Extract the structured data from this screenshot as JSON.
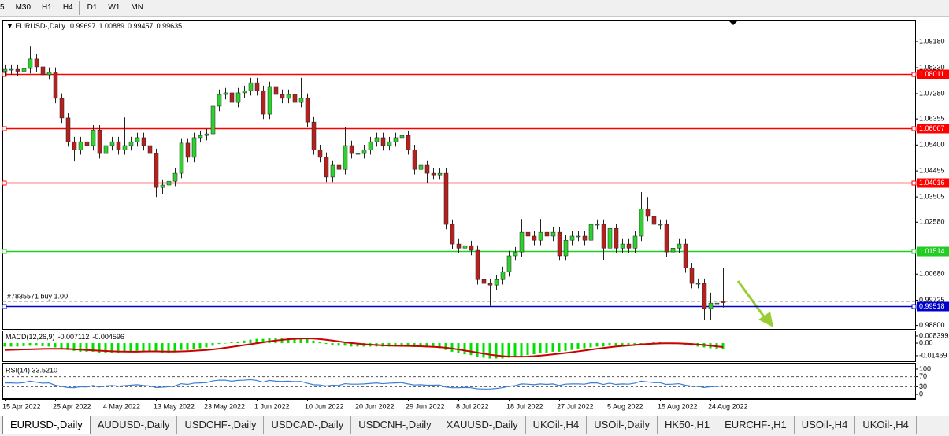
{
  "toolbar": {
    "timeframes": [
      "5",
      "M30",
      "H1",
      "H4",
      "D1",
      "W1",
      "MN"
    ]
  },
  "chart_data": {
    "type": "candlestick",
    "symbol": "EURUSD-,Daily",
    "bull_color": "#2ed12e",
    "bear_color": "#b3221e",
    "wick_color": "#222222",
    "ylim": [
      0.98673,
      1.09928
    ],
    "yticks": [
      {
        "value": 1.0918,
        "label": "1.09180"
      },
      {
        "value": 1.0823,
        "label": "1.08230"
      },
      {
        "value": 1.0728,
        "label": "1.07280"
      },
      1.06355,
      {
        "value": 1.054,
        "label": "1.05400"
      },
      1.04455,
      1.03505,
      {
        "value": 1.0258,
        "label": "1.02580"
      },
      {
        "value": 1.0068,
        "label": "1.00680"
      },
      0.99725,
      {
        "value": 0.988,
        "label": "0.98800"
      }
    ],
    "levels": [
      {
        "value": 1.08011,
        "color": "#ff0000"
      },
      {
        "value": 1.06007,
        "color": "#ff0000"
      },
      {
        "value": 1.04016,
        "color": "#ff0000"
      },
      {
        "value": 1.01514,
        "color": "#22cc22"
      },
      {
        "value": 0.99518,
        "color": "#0000cc"
      }
    ],
    "trade": {
      "label": "#7835571 buy 1.00",
      "price": 0.9968
    },
    "dates": [
      "15 Apr 2022",
      "25 Apr 2022",
      "4 May 2022",
      "13 May 2022",
      "23 May 2022",
      "1 Jun 2022",
      "10 Jun 2022",
      "20 Jun 2022",
      "29 Jun 2022",
      "8 Jul 2022",
      "18 Jul 2022",
      "27 Jul 2022",
      "5 Aug 2022",
      "15 Aug 2022",
      "24 Aug 2022"
    ],
    "candles": [
      [
        1.081,
        1.0835,
        1.0792,
        1.0817
      ],
      [
        1.0817,
        1.0835,
        1.0799,
        1.0817
      ],
      [
        1.0817,
        1.0835,
        1.0792,
        1.081
      ],
      [
        1.081,
        1.0838,
        1.0792,
        1.082
      ],
      [
        1.082,
        1.09,
        1.0802,
        1.0855
      ],
      [
        1.0855,
        1.0873,
        1.0808,
        1.0826
      ],
      [
        1.0826,
        1.0844,
        1.0779,
        1.0797
      ],
      [
        1.0797,
        1.0824,
        1.0779,
        1.0806
      ],
      [
        1.0806,
        1.0824,
        1.0693,
        1.0711
      ],
      [
        1.0711,
        1.0729,
        1.0621,
        1.0639
      ],
      [
        1.0639,
        1.0657,
        1.0534,
        1.0552
      ],
      [
        1.0552,
        1.057,
        1.048,
        1.0523
      ],
      [
        1.0523,
        1.057,
        1.0505,
        1.0552
      ],
      [
        1.0552,
        1.057,
        1.052,
        1.0538
      ],
      [
        1.0538,
        1.0613,
        1.052,
        1.0595
      ],
      [
        1.0595,
        1.0613,
        1.0491,
        1.0509
      ],
      [
        1.0509,
        1.0556,
        1.0491,
        1.0538
      ],
      [
        1.0538,
        1.057,
        1.052,
        1.0552
      ],
      [
        1.0552,
        1.057,
        1.0505,
        1.0523
      ],
      [
        1.0523,
        1.0641,
        1.0505,
        1.0538
      ],
      [
        1.0538,
        1.057,
        1.052,
        1.0552
      ],
      [
        1.0552,
        1.0585,
        1.0534,
        1.0567
      ],
      [
        1.0567,
        1.0585,
        1.052,
        1.0538
      ],
      [
        1.0538,
        1.0556,
        1.0491,
        1.0509
      ],
      [
        1.0509,
        1.0527,
        1.035,
        1.0385
      ],
      [
        1.0385,
        1.0412,
        1.036,
        1.0394
      ],
      [
        1.0394,
        1.0426,
        1.0376,
        1.0408
      ],
      [
        1.0408,
        1.0455,
        1.039,
        1.0437
      ],
      [
        1.0437,
        1.0565,
        1.0419,
        1.0547
      ],
      [
        1.0547,
        1.0565,
        1.0477,
        1.0495
      ],
      [
        1.0495,
        1.0585,
        1.0477,
        1.0567
      ],
      [
        1.0567,
        1.0593,
        1.0549,
        1.0575
      ],
      [
        1.0575,
        1.0599,
        1.0557,
        1.0581
      ],
      [
        1.0581,
        1.07,
        1.0563,
        1.0682
      ],
      [
        1.0682,
        1.0743,
        1.0664,
        1.0725
      ],
      [
        1.0725,
        1.0749,
        1.0707,
        1.0731
      ],
      [
        1.0731,
        1.0749,
        1.0678,
        1.0696
      ],
      [
        1.0696,
        1.0749,
        1.0678,
        1.0731
      ],
      [
        1.0731,
        1.0757,
        1.0713,
        1.0739
      ],
      [
        1.0739,
        1.0786,
        1.0721,
        1.0768
      ],
      [
        1.0768,
        1.0786,
        1.0721,
        1.0739
      ],
      [
        1.0739,
        1.0757,
        1.0635,
        1.0653
      ],
      [
        1.0653,
        1.0772,
        1.0635,
        1.0754
      ],
      [
        1.0754,
        1.0772,
        1.0707,
        1.0725
      ],
      [
        1.0725,
        1.0743,
        1.0693,
        1.0711
      ],
      [
        1.0711,
        1.0743,
        1.0693,
        1.0725
      ],
      [
        1.0725,
        1.0743,
        1.0678,
        1.0696
      ],
      [
        1.0696,
        1.0786,
        1.0678,
        1.0711
      ],
      [
        1.0711,
        1.0729,
        1.0606,
        1.0624
      ],
      [
        1.0624,
        1.0642,
        1.0505,
        1.0523
      ],
      [
        1.0523,
        1.0541,
        1.0477,
        1.0495
      ],
      [
        1.0495,
        1.0513,
        1.0405,
        1.0423
      ],
      [
        1.0423,
        1.0484,
        1.0405,
        1.0466
      ],
      [
        1.0466,
        1.0484,
        1.0359,
        1.0451
      ],
      [
        1.0451,
        1.0605,
        1.0433,
        1.0538
      ],
      [
        1.0538,
        1.0556,
        1.0491,
        1.0509
      ],
      [
        1.0509,
        1.0527,
        1.0491,
        1.0509
      ],
      [
        1.0509,
        1.0541,
        1.0491,
        1.0523
      ],
      [
        1.0523,
        1.057,
        1.0505,
        1.0552
      ],
      [
        1.0552,
        1.0585,
        1.0534,
        1.0567
      ],
      [
        1.0567,
        1.0585,
        1.052,
        1.0538
      ],
      [
        1.0538,
        1.057,
        1.052,
        1.0552
      ],
      [
        1.0552,
        1.0585,
        1.0534,
        1.0567
      ],
      [
        1.0567,
        1.0614,
        1.0549,
        1.0575
      ],
      [
        1.0575,
        1.0593,
        1.0505,
        1.0523
      ],
      [
        1.0523,
        1.0541,
        1.0433,
        1.0451
      ],
      [
        1.0451,
        1.0484,
        1.0433,
        1.0466
      ],
      [
        1.0466,
        1.0484,
        1.04,
        1.0437
      ],
      [
        1.0437,
        1.0455,
        1.0413,
        1.0431
      ],
      [
        1.0431,
        1.0455,
        1.0413,
        1.0437
      ],
      [
        1.0437,
        1.0455,
        1.0232,
        1.025
      ],
      [
        1.025,
        1.0268,
        1.016,
        1.0178
      ],
      [
        1.0178,
        1.0196,
        1.0145,
        1.0163
      ],
      [
        1.0163,
        1.019,
        1.0145,
        1.0172
      ],
      [
        1.0172,
        1.019,
        1.0137,
        1.0155
      ],
      [
        1.0155,
        1.0173,
        1.003,
        1.0048
      ],
      [
        1.0048,
        1.0066,
        1.0016,
        1.0034
      ],
      [
        1.0034,
        1.0052,
        0.9952,
        1.0028
      ],
      [
        1.0028,
        1.0066,
        1.001,
        1.0048
      ],
      [
        1.0048,
        1.0095,
        1.003,
        1.0077
      ],
      [
        1.0077,
        1.0153,
        1.0059,
        1.0135
      ],
      [
        1.0135,
        1.0167,
        1.0117,
        1.0149
      ],
      [
        1.0149,
        1.027,
        1.0131,
        1.0221
      ],
      [
        1.0221,
        1.027,
        1.0189,
        1.0207
      ],
      [
        1.0207,
        1.0225,
        1.0174,
        1.0192
      ],
      [
        1.0192,
        1.027,
        1.0174,
        1.0221
      ],
      [
        1.0221,
        1.0239,
        1.0189,
        1.0207
      ],
      [
        1.0207,
        1.0239,
        1.0189,
        1.0221
      ],
      [
        1.0221,
        1.0239,
        1.0117,
        1.0135
      ],
      [
        1.0135,
        1.021,
        1.0117,
        1.0192
      ],
      [
        1.0192,
        1.0225,
        1.0174,
        1.0207
      ],
      [
        1.0207,
        1.0225,
        1.0189,
        1.0207
      ],
      [
        1.0207,
        1.0225,
        1.0174,
        1.0192
      ],
      [
        1.0192,
        1.029,
        1.0174,
        1.025
      ],
      [
        1.025,
        1.0268,
        1.0232,
        1.025
      ],
      [
        1.025,
        1.0268,
        1.012,
        1.0163
      ],
      [
        1.0163,
        1.0253,
        1.0145,
        1.0235
      ],
      [
        1.0235,
        1.0253,
        1.0145,
        1.0163
      ],
      [
        1.0163,
        1.0196,
        1.0145,
        1.0178
      ],
      [
        1.0178,
        1.0196,
        1.0145,
        1.0163
      ],
      [
        1.0163,
        1.0225,
        1.0145,
        1.0207
      ],
      [
        1.0207,
        1.0368,
        1.0189,
        1.0307
      ],
      [
        1.0307,
        1.035,
        1.0261,
        1.0279
      ],
      [
        1.0279,
        1.0297,
        1.0232,
        1.025
      ],
      [
        1.025,
        1.0268,
        1.0232,
        1.025
      ],
      [
        1.025,
        1.0268,
        1.0131,
        1.0149
      ],
      [
        1.0149,
        1.0181,
        1.0131,
        1.0163
      ],
      [
        1.0163,
        1.0196,
        1.0145,
        1.0178
      ],
      [
        1.0178,
        1.0196,
        1.0073,
        1.0091
      ],
      [
        1.0091,
        1.0109,
        1.0016,
        1.0034
      ],
      [
        1.0034,
        1.0052,
        1.0016,
        1.0034
      ],
      [
        1.0034,
        1.0052,
        0.99,
        0.9942
      ],
      [
        0.9942,
        1.0,
        0.9899,
        0.9962
      ],
      [
        0.9962,
        0.999,
        0.9914,
        0.9962
      ],
      [
        0.99697,
        1.00889,
        0.99457,
        0.99635
      ]
    ],
    "macd": {
      "name": "MACD(12,26,9)",
      "hist_color": "#00e000",
      "signal_color": "#cc0000",
      "ylim": [
        -0.0212,
        0.0139
      ],
      "yticks": [
        0.008399,
        {
          "value": 0,
          "label": "0.00"
        },
        -0.01469
      ],
      "histogram": [
        -0.004,
        -0.004,
        -0.004,
        -0.0035,
        -0.003,
        -0.003,
        -0.0035,
        -0.004,
        -0.005,
        -0.006,
        -0.008,
        -0.009,
        -0.01,
        -0.01,
        -0.01,
        -0.011,
        -0.011,
        -0.011,
        -0.011,
        -0.01,
        -0.01,
        -0.009,
        -0.009,
        -0.009,
        -0.01,
        -0.011,
        -0.011,
        -0.01,
        -0.008,
        -0.008,
        -0.007,
        -0.006,
        -0.005,
        -0.003,
        -0.001,
        0.0,
        0.001,
        0.002,
        0.003,
        0.004,
        0.005,
        0.005,
        0.006,
        0.006,
        0.006,
        0.006,
        0.006,
        0.006,
        0.005,
        0.003,
        0.001,
        -0.001,
        -0.002,
        -0.003,
        -0.003,
        -0.004,
        -0.004,
        -0.004,
        -0.004,
        -0.004,
        -0.004,
        -0.004,
        -0.004,
        -0.003,
        -0.003,
        -0.004,
        -0.004,
        -0.005,
        -0.005,
        -0.006,
        -0.008,
        -0.01,
        -0.012,
        -0.013,
        -0.014,
        -0.016,
        -0.017,
        -0.018,
        -0.018,
        -0.018,
        -0.017,
        -0.016,
        -0.015,
        -0.014,
        -0.013,
        -0.012,
        -0.011,
        -0.01,
        -0.01,
        -0.009,
        -0.008,
        -0.007,
        -0.006,
        -0.005,
        -0.004,
        -0.004,
        -0.003,
        -0.003,
        -0.003,
        -0.002,
        -0.002,
        -0.001,
        0.0,
        0.001,
        0.001,
        0.0,
        -0.001,
        -0.001,
        -0.002,
        -0.003,
        -0.004,
        -0.005,
        -0.006,
        -0.007,
        -0.007112
      ],
      "signal": [
        -0.008,
        -0.0078,
        -0.0076,
        -0.0074,
        -0.0072,
        -0.007,
        -0.0068,
        -0.0067,
        -0.0066,
        -0.0066,
        -0.0068,
        -0.0072,
        -0.0076,
        -0.008,
        -0.0084,
        -0.0088,
        -0.0092,
        -0.0095,
        -0.0098,
        -0.0099,
        -0.01,
        -0.01,
        -0.0098,
        -0.0097,
        -0.0097,
        -0.0098,
        -0.0099,
        -0.0099,
        -0.0097,
        -0.0094,
        -0.009,
        -0.0085,
        -0.008,
        -0.0073,
        -0.0065,
        -0.0055,
        -0.0045,
        -0.0034,
        -0.0023,
        -0.0012,
        -0.0002,
        0.001,
        0.002,
        0.003,
        0.0038,
        0.0045,
        0.005,
        0.0054,
        0.0056,
        0.0054,
        0.0048,
        0.004,
        0.003,
        0.002,
        0.001,
        0.0002,
        -0.0005,
        -0.0012,
        -0.0018,
        -0.0022,
        -0.0026,
        -0.0029,
        -0.0031,
        -0.0032,
        -0.0033,
        -0.0035,
        -0.0037,
        -0.004,
        -0.0043,
        -0.0047,
        -0.0054,
        -0.0063,
        -0.0074,
        -0.0086,
        -0.0098,
        -0.011,
        -0.0122,
        -0.0134,
        -0.0144,
        -0.0152,
        -0.0156,
        -0.0158,
        -0.0158,
        -0.0156,
        -0.0152,
        -0.0146,
        -0.0139,
        -0.0131,
        -0.0123,
        -0.0115,
        -0.0106,
        -0.0096,
        -0.0086,
        -0.0076,
        -0.0066,
        -0.0057,
        -0.0048,
        -0.004,
        -0.0033,
        -0.0027,
        -0.0021,
        -0.0015,
        -0.001,
        -0.0006,
        -0.0003,
        -0.0002,
        -0.0002,
        -0.0003,
        -0.0006,
        -0.001,
        -0.0016,
        -0.0022,
        -0.003,
        -0.0038,
        -0.004596
      ]
    },
    "rsi": {
      "title": "RSI(14) 33.5210",
      "color": "#3a7fd5",
      "ylim": [
        -15.6,
        121.9
      ],
      "yticks": [
        100,
        70,
        30,
        0
      ],
      "levels": [
        70,
        30
      ],
      "values": [
        45,
        45,
        44,
        46,
        52,
        48,
        44,
        45,
        36,
        31,
        27,
        26,
        30,
        29,
        35,
        29,
        33,
        35,
        32,
        34,
        36,
        38,
        35,
        33,
        27,
        28,
        30,
        33,
        42,
        39,
        44,
        45,
        46,
        53,
        56,
        56,
        52,
        55,
        56,
        58,
        55,
        48,
        55,
        52,
        51,
        52,
        50,
        51,
        44,
        38,
        37,
        33,
        36,
        35,
        42,
        40,
        40,
        41,
        43,
        45,
        42,
        44,
        45,
        46,
        41,
        37,
        38,
        36,
        36,
        37,
        29,
        26,
        26,
        27,
        26,
        22,
        21,
        21,
        23,
        26,
        32,
        34,
        41,
        40,
        38,
        41,
        39,
        41,
        35,
        40,
        41,
        41,
        40,
        45,
        45,
        39,
        44,
        39,
        41,
        40,
        44,
        52,
        49,
        46,
        46,
        39,
        40,
        42,
        36,
        32,
        32,
        27,
        30,
        31,
        33.521
      ]
    }
  },
  "tabs": [
    "EURUSD-,Daily",
    "AUDUSD-,Daily",
    "USDCHF-,Daily",
    "USDCAD-,Daily",
    "USDCNH-,Daily",
    "XAUUSD-,Daily",
    "UKOil-,H4",
    "USOil-,Daily",
    "HK50-,H1",
    "EURCHF-,H1",
    "USOil-,H4",
    "UKOil-,H4"
  ]
}
